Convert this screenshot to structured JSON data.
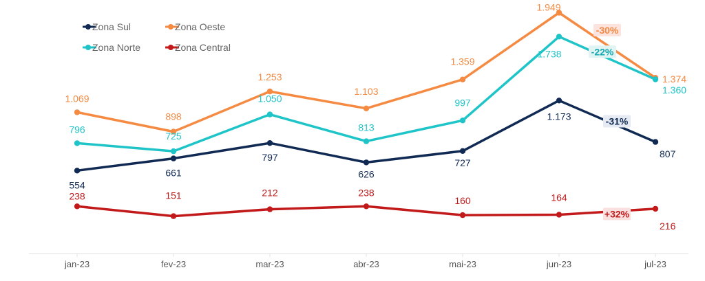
{
  "chart_data": {
    "type": "line",
    "categories": [
      "jan-23",
      "fev-23",
      "mar-23",
      "abr-23",
      "mai-23",
      "jun-23",
      "jul-23"
    ],
    "ylim": [
      0,
      2000
    ],
    "grid": false,
    "legend_position": "top-left",
    "series": [
      {
        "key": "sul",
        "name": "Zona Sul",
        "color": "#102a54",
        "values": [
          554,
          661,
          797,
          626,
          727,
          1173,
          807
        ],
        "labels": [
          "554",
          "661",
          "797",
          "626",
          "727",
          "1.173",
          "807"
        ]
      },
      {
        "key": "oeste",
        "name": "Zona Oeste",
        "color": "#f58a42",
        "values": [
          1069,
          898,
          1253,
          1103,
          1359,
          1949,
          1374
        ],
        "labels": [
          "1.069",
          "898",
          "1.253",
          "1.103",
          "1.359",
          "1.949",
          "1.374"
        ]
      },
      {
        "key": "norte",
        "name": "Zona Norte",
        "color": "#1fc4c8",
        "values": [
          796,
          725,
          1050,
          813,
          997,
          1738,
          1360
        ],
        "labels": [
          "796",
          "725",
          "1.050",
          "813",
          "997",
          "1.738",
          "1.360"
        ]
      },
      {
        "key": "central",
        "name": "Zona Central",
        "color": "#c21a1a",
        "values": [
          238,
          151,
          212,
          238,
          160,
          164,
          216
        ],
        "labels": [
          "238",
          "151",
          "212",
          "238",
          "160",
          "164",
          "216"
        ]
      }
    ],
    "annotations": [
      {
        "series": "oeste",
        "text": "-30%",
        "bg": "#fde3de",
        "color": "#f58a42"
      },
      {
        "series": "norte",
        "text": "-22%",
        "bg": "#e1f4f4",
        "color": "#18a9b0"
      },
      {
        "series": "sul",
        "text": "-31%",
        "bg": "#e6eaf2",
        "color": "#102a54"
      },
      {
        "series": "central",
        "text": "+32%",
        "bg": "#fbe0e0",
        "color": "#c21a1a"
      }
    ]
  }
}
